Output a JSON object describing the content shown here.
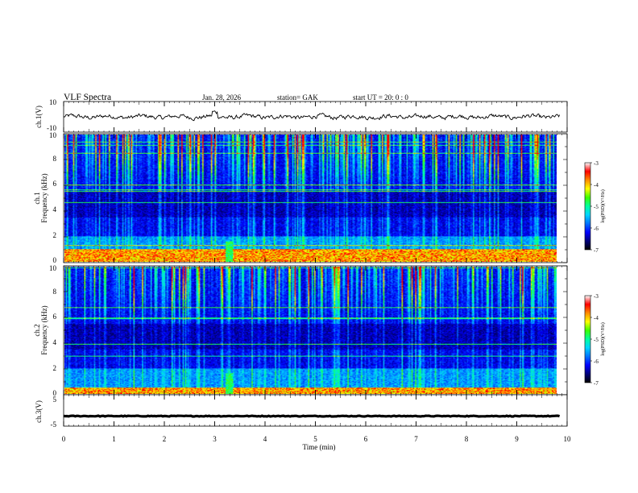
{
  "header": {
    "title": "VLF  Spectra",
    "date": "Jan.  28,  2026",
    "station": "station= GAK",
    "start_ut": "start  UT  =    20: 0   : 0"
  },
  "colors": {
    "colormap": [
      "#000000",
      "#00007a",
      "#0000ff",
      "#0072ff",
      "#00d4ff",
      "#00ff9f",
      "#3cff00",
      "#ffff00",
      "#ff8c00",
      "#ff0000",
      "#ffffff"
    ],
    "trace": "#000000"
  },
  "chart_data": [
    {
      "type": "line",
      "name": "ch1-waveform",
      "ylabel": "ch.1(V)",
      "ylim": [
        -10,
        10
      ],
      "yticks": [
        "10",
        "-10"
      ],
      "xlim": [
        0,
        10
      ],
      "baseline": 0,
      "amplitude_range": [
        -3,
        3
      ]
    },
    {
      "type": "heatmap",
      "name": "ch1-spectrogram",
      "ylabel_line1": "ch.1",
      "ylabel_line2": "Frequency  (kHz)",
      "ylim": [
        0,
        10
      ],
      "yticks": [
        "0",
        "2",
        "4",
        "6",
        "8",
        "10"
      ],
      "xlim": [
        0,
        9.85
      ],
      "colorbar": {
        "label": "log(PSD)(V²/Hz)",
        "range": [
          -7,
          -3
        ],
        "ticks": [
          "-3",
          "-4",
          "-5",
          "-6",
          "-7"
        ]
      },
      "strong_band_khz": [
        0,
        1
      ],
      "burst_column_min": 3.3
    },
    {
      "type": "heatmap",
      "name": "ch2-spectrogram",
      "ylabel_line1": "ch.2",
      "ylabel_line2": "Frequency  (kHz)",
      "ylim": [
        0,
        10
      ],
      "yticks": [
        "0",
        "2",
        "4",
        "6",
        "8",
        "10"
      ],
      "xlim": [
        0,
        9.85
      ],
      "colorbar": {
        "label": "log(PSD)(V²/Hz)",
        "range": [
          -7,
          -3
        ],
        "ticks": [
          "-3",
          "-4",
          "-5",
          "-6",
          "-7"
        ]
      },
      "strong_band_khz": [
        0,
        0.5
      ],
      "burst_column_min": 3.3
    },
    {
      "type": "line",
      "name": "ch3-waveform",
      "ylabel": "ch.3(V)",
      "ylim": [
        -5,
        5
      ],
      "yticks": [
        "5",
        "-5"
      ],
      "xlim": [
        0,
        10
      ],
      "baseline": -1.8,
      "xlabel": "Time  (min)",
      "xticks": [
        "0",
        "1",
        "2",
        "3",
        "4",
        "5",
        "6",
        "7",
        "8",
        "9",
        "10"
      ]
    }
  ]
}
